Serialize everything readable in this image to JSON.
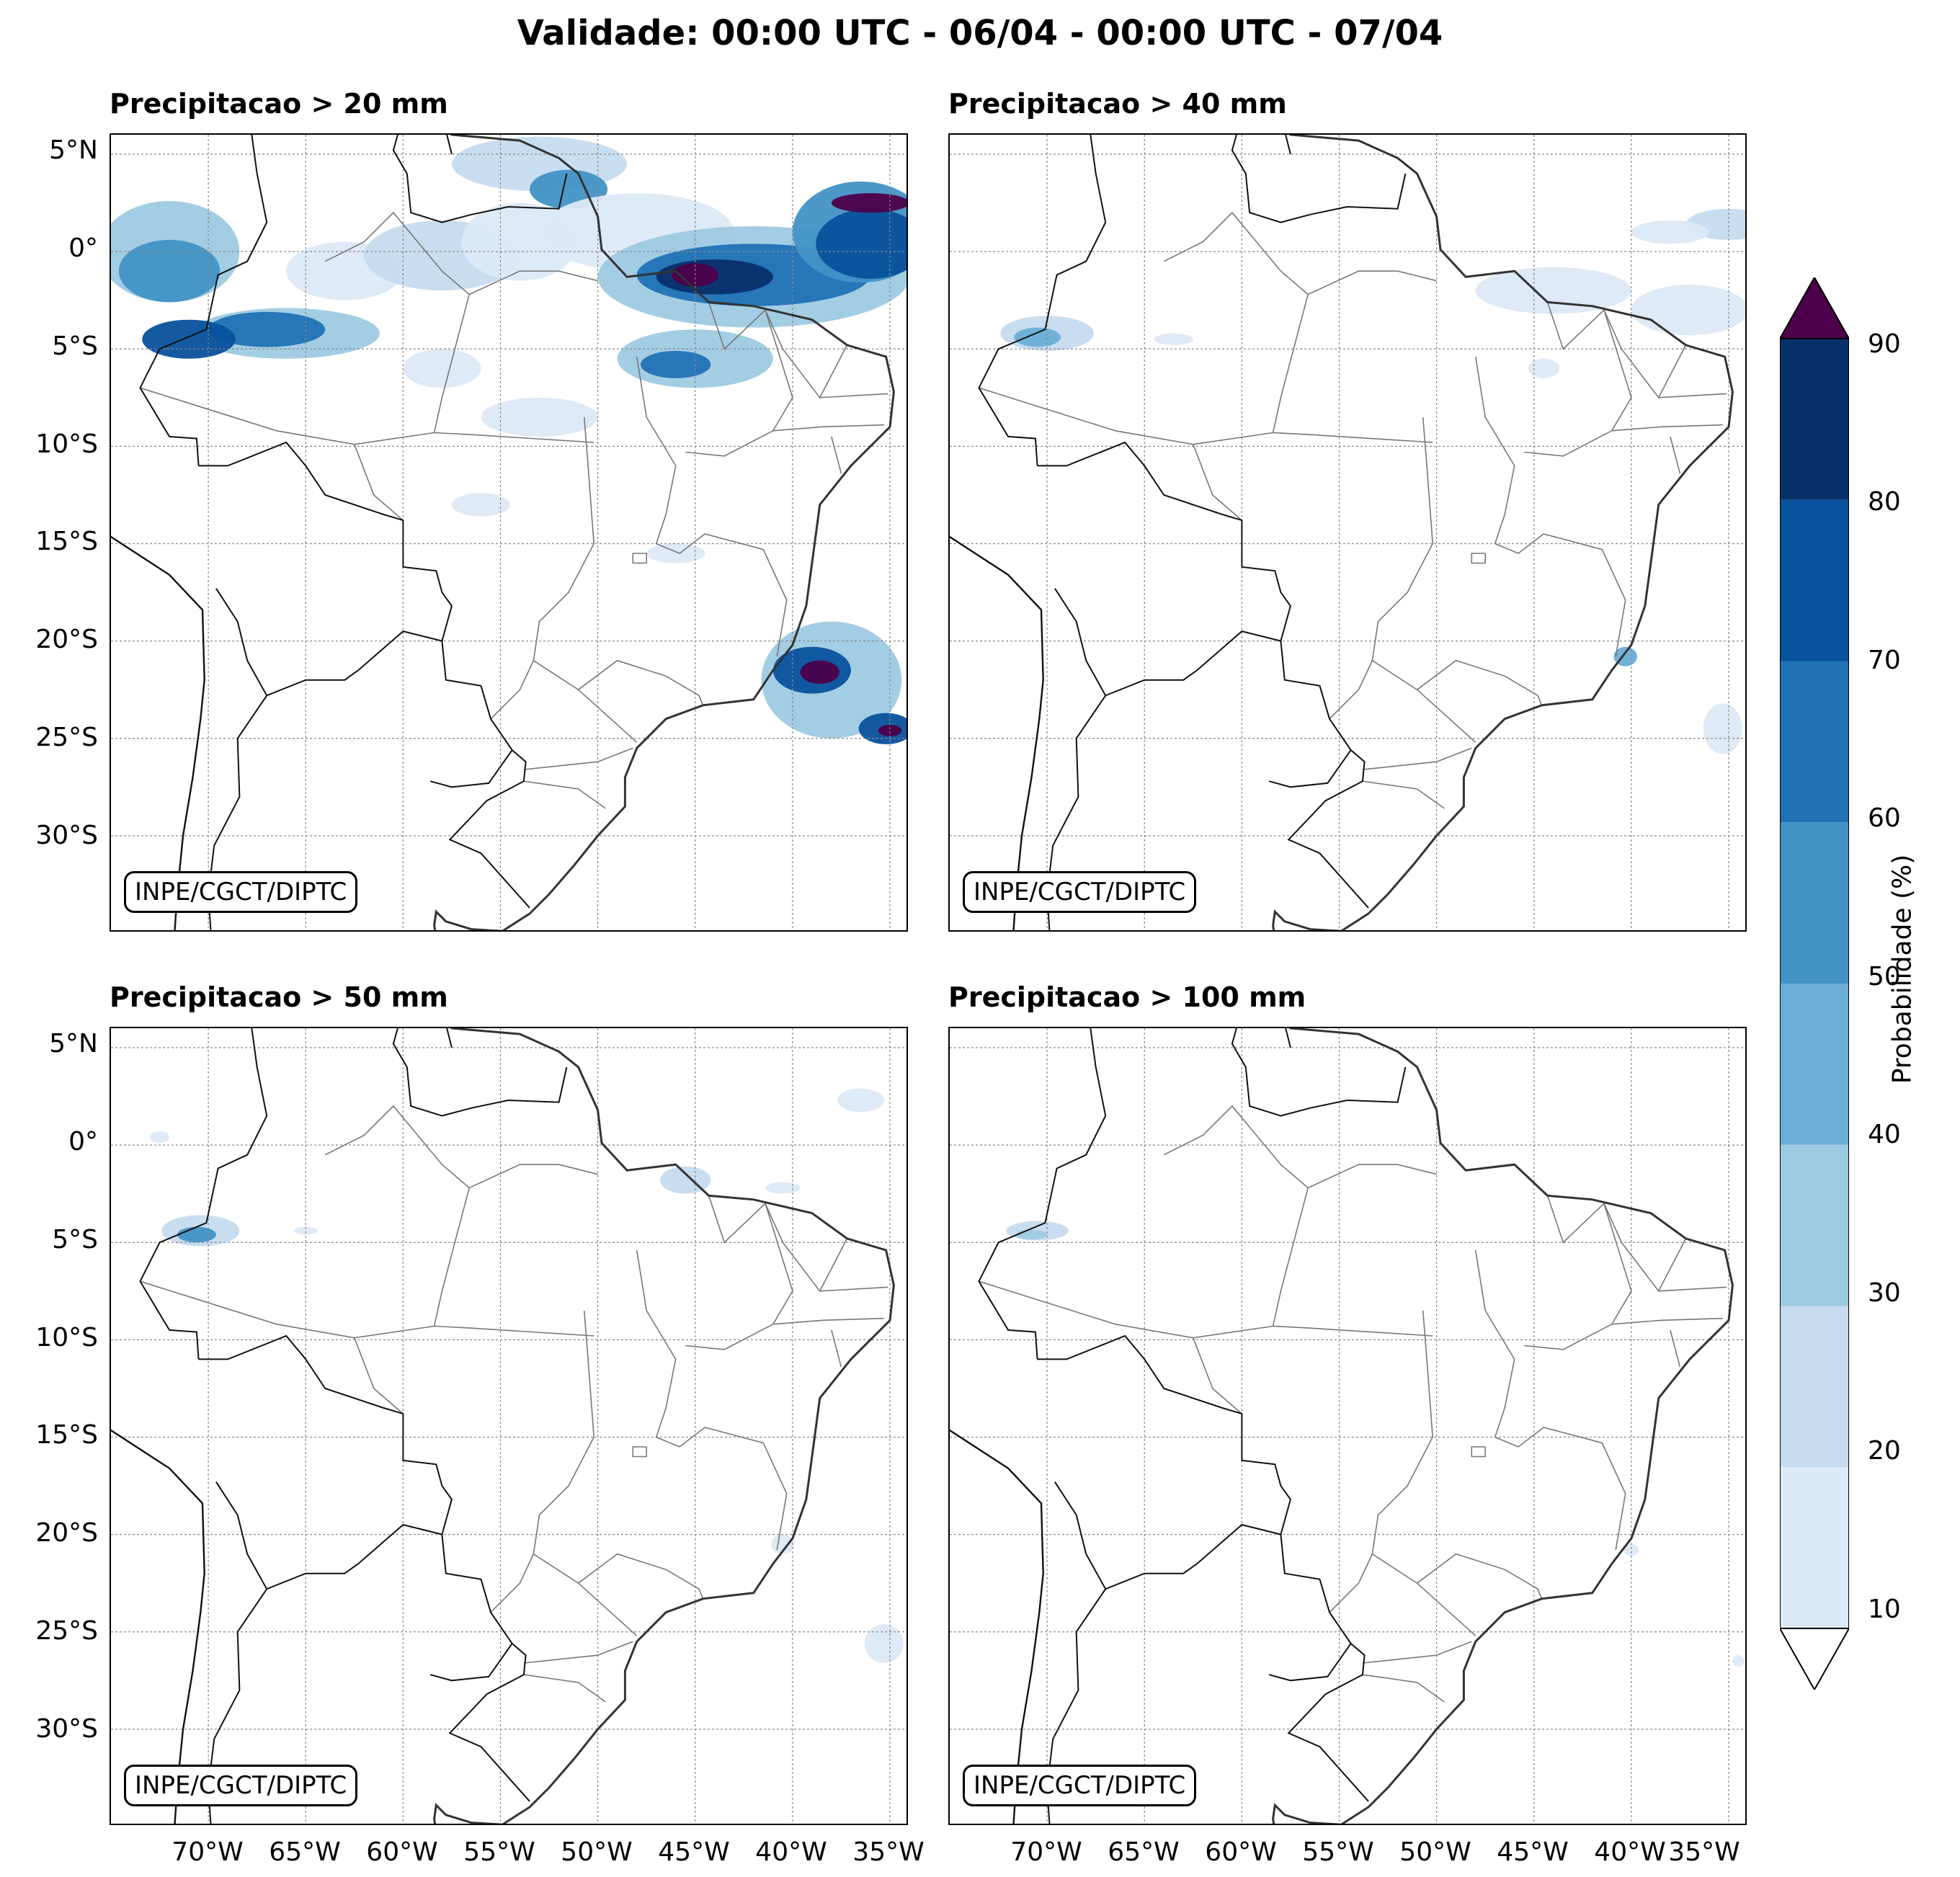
{
  "title": "Validade: 00:00 UTC - 06/04 - 00:00 UTC - 07/04",
  "panels": [
    {
      "title": "Precipitacao > 20 mm",
      "credit": "INPE/CGCT/DIPTC"
    },
    {
      "title": "Precipitacao > 40 mm",
      "credit": "INPE/CGCT/DIPTC"
    },
    {
      "title": "Precipitacao > 50 mm",
      "credit": "INPE/CGCT/DIPTC"
    },
    {
      "title": "Precipitacao > 100 mm",
      "credit": "INPE/CGCT/DIPTC"
    }
  ],
  "lat_labels": [
    "5°N",
    "0°",
    "5°S",
    "10°S",
    "15°S",
    "20°S",
    "25°S",
    "30°S"
  ],
  "lon_labels": [
    "70°W",
    "65°W",
    "60°W",
    "55°W",
    "50°W",
    "45°W",
    "40°W",
    "35°W"
  ],
  "colorbar": {
    "label": "Probabilidade (%)",
    "ticks": [
      "10",
      "20",
      "30",
      "40",
      "50",
      "60",
      "70",
      "80",
      "90"
    ],
    "colors": [
      "#dce9f6",
      "#c6dbef",
      "#9ecae1",
      "#6baed6",
      "#4292c6",
      "#2171b5",
      "#08519c",
      "#08306b"
    ],
    "extend_max_color": "#4d004b",
    "extend_min_color": "#ffffff"
  },
  "extent": {
    "lon_min": -75,
    "lon_max": -34,
    "lat_min": -35,
    "lat_max": 6
  }
}
